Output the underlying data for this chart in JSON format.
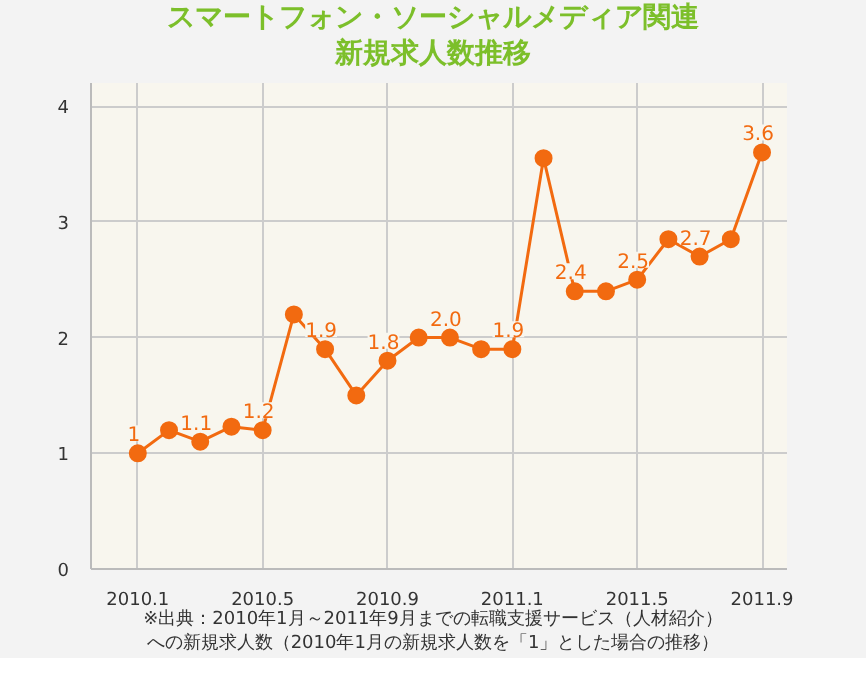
{
  "chart_data": {
    "type": "line",
    "title": "スマートフォン・ソーシャルメディア関連",
    "subtitle": "新規求人数推移",
    "categories": [
      "2010.1",
      null,
      null,
      null,
      "2010.5",
      null,
      null,
      null,
      "2010.9",
      null,
      null,
      null,
      "2011.1",
      null,
      null,
      null,
      "2011.5",
      null,
      null,
      null,
      "2011.9"
    ],
    "series": [
      {
        "color": "#f26a10",
        "values": [
          1,
          1.2,
          1.1,
          1.23,
          1.2,
          2.2,
          1.9,
          1.5,
          1.8,
          2.0,
          2.0,
          1.9,
          1.9,
          3.55,
          2.4,
          2.4,
          2.5,
          2.85,
          2.7,
          2.85,
          3.6
        ],
        "value_labels": [
          "1",
          null,
          "1.1",
          null,
          "1.2",
          null,
          "1.9",
          null,
          "1.8",
          null,
          "2.0",
          null,
          "1.9",
          null,
          "2.4",
          null,
          "2.5",
          null,
          "2.7",
          null,
          "3.6"
        ]
      }
    ],
    "ylim": [
      0,
      4.2
    ],
    "yticks": [
      0,
      1,
      2,
      3,
      4
    ],
    "grid": true,
    "marker": "circle",
    "line_style": "solid",
    "annotations": [
      "※出典：2010年1月～2011年9月までの転職支援サービス（人材紹介）",
      "への新規求人数（2010年1月の新規求人数を「1」とした場合の推移）"
    ]
  }
}
